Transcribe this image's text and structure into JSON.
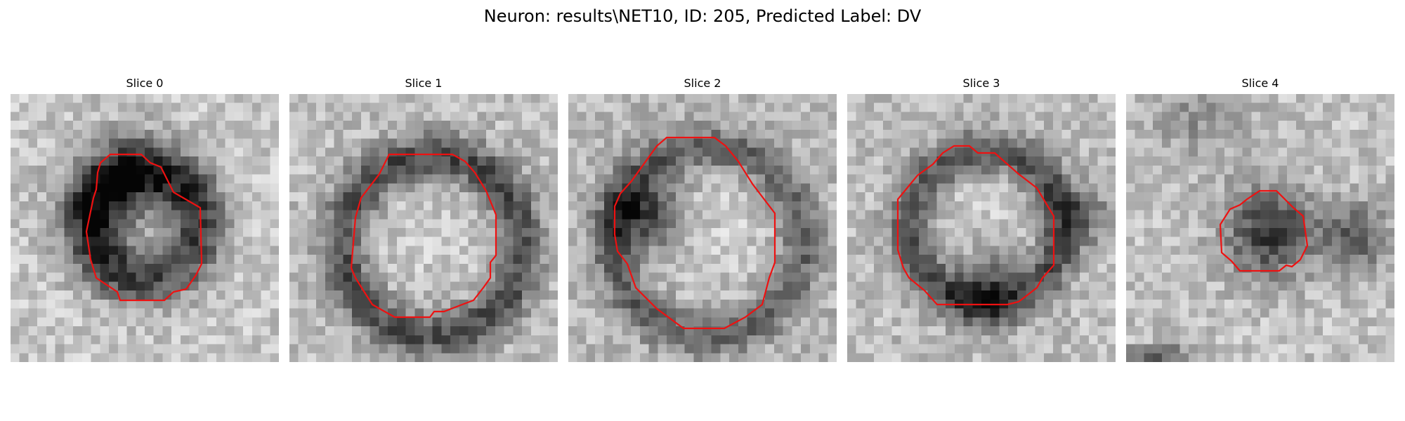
{
  "title": "Neuron: results\\NET10, ID: 205, Predicted Label: DV",
  "contour_color": "#ee1111",
  "panels": [
    {
      "label": "Slice 0"
    },
    {
      "label": "Slice 1"
    },
    {
      "label": "Slice 2"
    },
    {
      "label": "Slice 3"
    },
    {
      "label": "Slice 4"
    }
  ]
}
